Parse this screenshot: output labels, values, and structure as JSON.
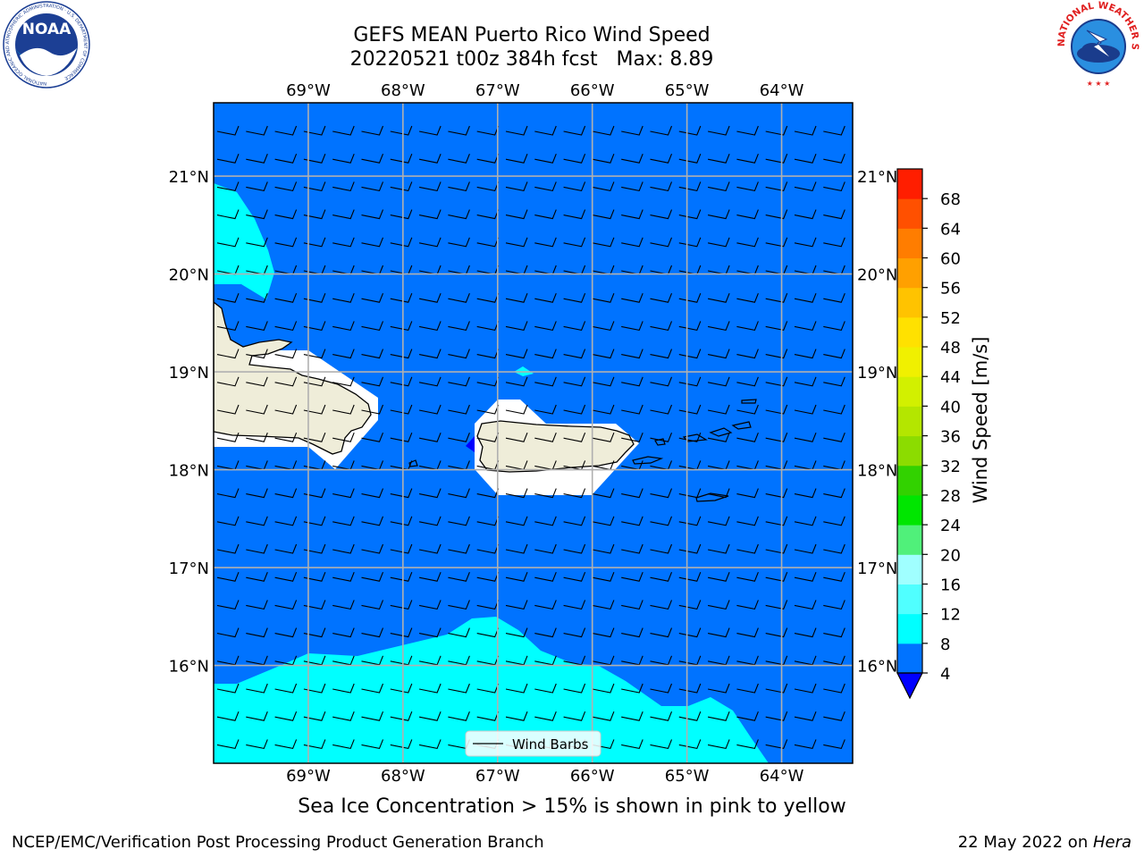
{
  "header": {
    "title_line1": "GEFS MEAN Puerto Rico Wind Speed",
    "title_line2": "20220521 t00z 384h fcst   Max: 8.89"
  },
  "logos": {
    "noaa": {
      "text": "NOAA",
      "ring_text": "NATIONAL OCEANIC AND ATMOSPHERIC ADMINISTRATION · U.S. DEPARTMENT OF COMMERCE"
    },
    "nws": {
      "ring_text": "NATIONAL WEATHER SERVICE"
    }
  },
  "map": {
    "lon_labels": [
      "69°W",
      "68°W",
      "67°W",
      "66°W",
      "65°W",
      "64°W"
    ],
    "lat_labels": [
      "21°N",
      "20°N",
      "19°N",
      "18°N",
      "17°N",
      "16°N"
    ],
    "lon_values": [
      -69,
      -68,
      -67,
      -66,
      -65,
      -64
    ],
    "lat_values": [
      21,
      20,
      19,
      18,
      17,
      16
    ],
    "extent": {
      "lon_min": -70.0,
      "lon_max": -63.25,
      "lat_min": 15.0,
      "lat_max": 21.75
    },
    "legend_label": "Wind Barbs",
    "colors": {
      "ocean_wind_4_8": "#0073ff",
      "wind_8_12": "#00ffff",
      "wind_lt_4": "#0000ff",
      "land": "#efedd9",
      "grid": "#b0b0b0"
    }
  },
  "colorbar": {
    "label": "Wind Speed [m/s]",
    "ticks": [
      "4",
      "8",
      "12",
      "16",
      "20",
      "24",
      "28",
      "32",
      "36",
      "40",
      "44",
      "48",
      "52",
      "56",
      "60",
      "64",
      "68"
    ],
    "colors": [
      "#0073ff",
      "#00ffff",
      "#50ffff",
      "#a0ffff",
      "#50f07a",
      "#00e600",
      "#32d200",
      "#8cdc00",
      "#b4e600",
      "#d2f000",
      "#f0f000",
      "#ffe100",
      "#ffc300",
      "#ffa000",
      "#ff7d00",
      "#ff5000",
      "#ff1e00"
    ],
    "extend_min_color": "#0000ff"
  },
  "caption": "Sea Ice Concentration > 15% is shown in pink to yellow",
  "footer": {
    "left": "NCEP/EMC/Verification Post Processing Product Generation Branch",
    "right_prefix": "22 May 2022 on ",
    "right_host": "Hera"
  }
}
